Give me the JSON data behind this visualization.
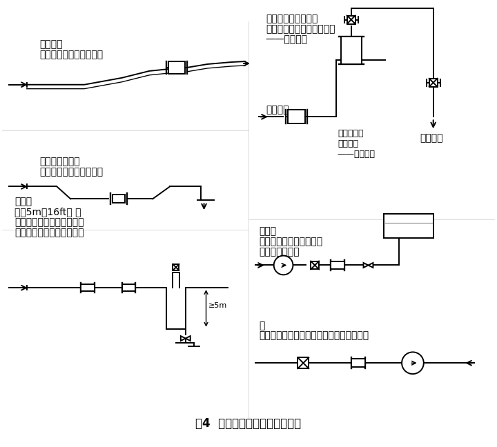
{
  "title": "图4  电磁流量计安装位置示意图",
  "title_fontsize": 12,
  "bg_color": "#ffffff",
  "line_color": "#000000",
  "gray_color": "#888888",
  "fig_width": 7.2,
  "fig_height": 6.48,
  "labels": {
    "tl1": "水平管道",
    "tl2": "安装在稍稍上升的管道区",
    "ml1": "散口灌入或排放",
    "ml2": "在管道的低段区安装仪表",
    "bl1": "落差管",
    "bl2": "超过5m（16ft） 长",
    "bl3": "在流量计的下游最高位置上",
    "bl4": "装自动排气阀（防止真空）",
    "tr1": "装在管道走向最高点",
    "tr2": "在测量管中容易聚集空气泡",
    "tr3": "——错误安装",
    "tr4": "优选位置",
    "mr1": "容易产生介",
    "mr2": "质非满管",
    "mr3": "——错误安装",
    "mr4": "开口排放",
    "br1": "长管线",
    "br2": "总是在流量计的下游安装",
    "br3": "控制阀和切断阀",
    "pump1": "泵",
    "pump2": "决不能在泵抽吸侧安装流量计（防止真空）",
    "dim5m": "≥5m"
  }
}
